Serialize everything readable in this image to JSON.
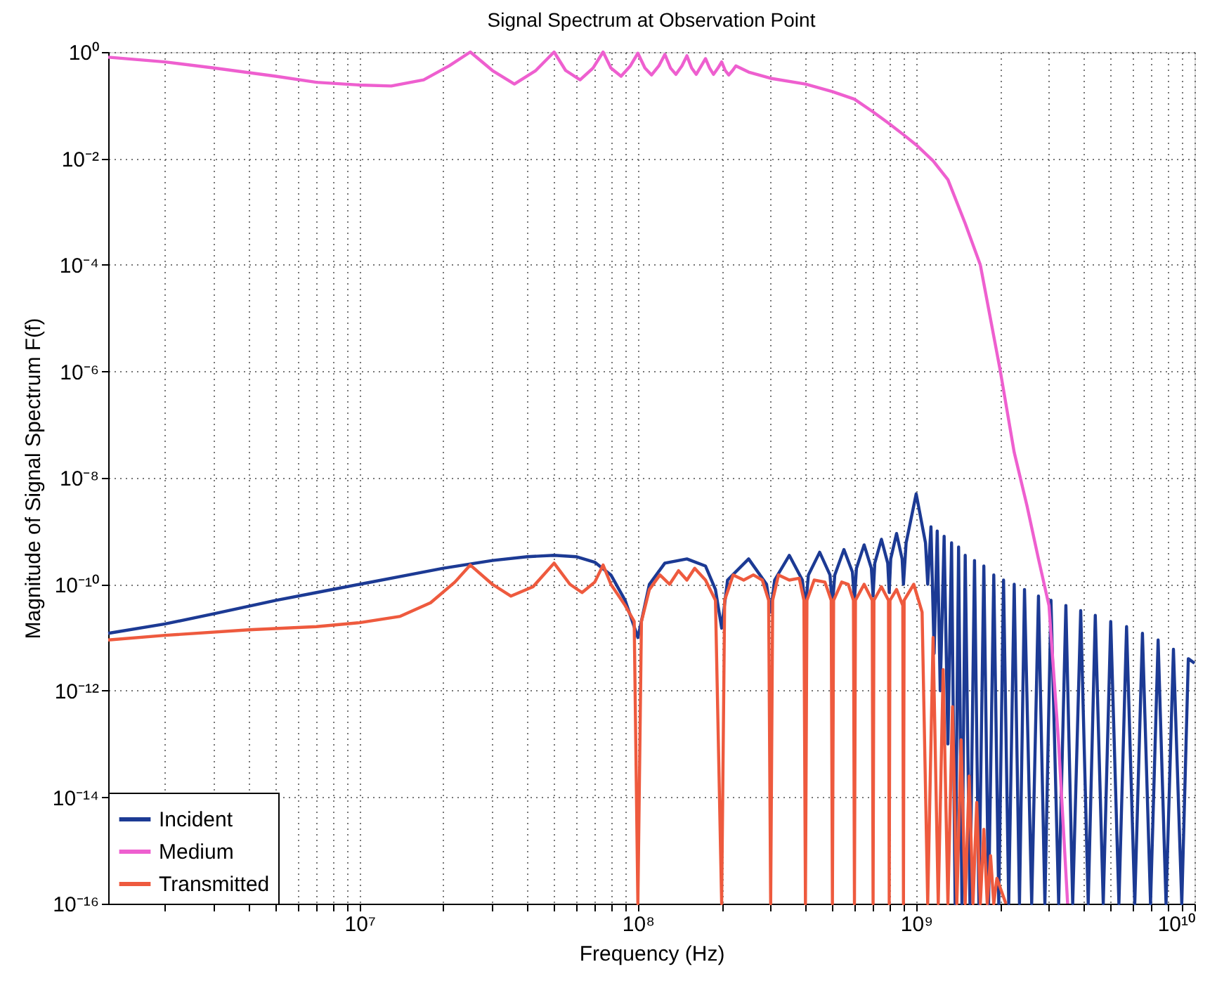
{
  "chart_data": {
    "type": "line",
    "title": "Signal Spectrum at Observation Point",
    "xlabel": "Frequency (Hz)",
    "ylabel": "Magnitude of Signal Spectrum F(f)",
    "log": "xy",
    "grid": true,
    "legend": "bottom left",
    "line_style": "solid",
    "xlim": [
      1250000,
      10000000000
    ],
    "ylim": [
      1e-16,
      1
    ],
    "xticks": [
      {
        "value": 2000000,
        "label": null
      },
      {
        "value": 3000000,
        "label": null
      },
      {
        "value": 4000000,
        "label": null
      },
      {
        "value": 5000000,
        "label": null
      },
      {
        "value": 6000000,
        "label": null
      },
      {
        "value": 7000000,
        "label": null
      },
      {
        "value": 8000000,
        "label": null
      },
      {
        "value": 9000000,
        "label": null
      },
      {
        "value": 10000000,
        "label": "10⁷"
      },
      {
        "value": 20000000,
        "label": null
      },
      {
        "value": 30000000,
        "label": null
      },
      {
        "value": 40000000,
        "label": null
      },
      {
        "value": 50000000,
        "label": null
      },
      {
        "value": 60000000,
        "label": null
      },
      {
        "value": 70000000,
        "label": null
      },
      {
        "value": 80000000,
        "label": null
      },
      {
        "value": 90000000,
        "label": null
      },
      {
        "value": 100000000,
        "label": "10⁸"
      },
      {
        "value": 200000000,
        "label": null
      },
      {
        "value": 300000000,
        "label": null
      },
      {
        "value": 400000000,
        "label": null
      },
      {
        "value": 500000000,
        "label": null
      },
      {
        "value": 600000000,
        "label": null
      },
      {
        "value": 700000000,
        "label": null
      },
      {
        "value": 800000000,
        "label": null
      },
      {
        "value": 900000000,
        "label": null
      },
      {
        "value": 1000000000,
        "label": "10⁹"
      },
      {
        "value": 2000000000,
        "label": null
      },
      {
        "value": 3000000000,
        "label": null
      },
      {
        "value": 4000000000,
        "label": null
      },
      {
        "value": 5000000000,
        "label": null
      },
      {
        "value": 6000000000,
        "label": null
      },
      {
        "value": 7000000000,
        "label": null
      },
      {
        "value": 8000000000,
        "label": null
      },
      {
        "value": 9000000000,
        "label": null
      },
      {
        "value": 10000000000,
        "label": "10¹⁰"
      }
    ],
    "yticks": [
      {
        "value": 1e-16,
        "label": "10⁻¹⁶"
      },
      {
        "value": 1e-14,
        "label": "10⁻¹⁴"
      },
      {
        "value": 1e-12,
        "label": "10⁻¹²"
      },
      {
        "value": 1e-10,
        "label": "10⁻¹⁰"
      },
      {
        "value": 1e-08,
        "label": "10⁻⁸"
      },
      {
        "value": 1e-06,
        "label": "10⁻⁶"
      },
      {
        "value": 0.0001,
        "label": "10⁻⁴"
      },
      {
        "value": 0.01,
        "label": "10⁻²"
      },
      {
        "value": 1,
        "label": "10⁰"
      }
    ],
    "series": [
      {
        "name": "Incident",
        "color": "#1c3a94",
        "x": [
          1250000,
          2000000,
          3000000,
          5000000,
          7000000,
          10000000,
          15000000,
          20000000,
          30000000,
          40000000,
          50000000,
          60000000,
          70000000,
          80000000,
          90000000,
          100000000,
          110000000,
          125000000,
          150000000,
          175000000,
          190000000,
          200000000,
          210000000,
          250000000,
          290000000,
          300000000,
          310000000,
          350000000,
          390000000,
          400000000,
          410000000,
          450000000,
          490000000,
          500000000,
          510000000,
          550000000,
          590000000,
          600000000,
          610000000,
          650000000,
          690000000,
          700000000,
          710000000,
          750000000,
          790000000,
          800000000,
          810000000,
          850000000,
          890000000,
          900000000,
          920000000,
          1000000000,
          1080000000,
          1100000000,
          1130000000,
          1160000000,
          1190000000,
          1220000000,
          1260000000,
          1300000000,
          1340000000,
          1380000000,
          1420000000,
          1460000000,
          1500000000,
          1560000000,
          1620000000,
          1680000000,
          1750000000,
          1820000000,
          1900000000,
          1980000000,
          2060000000,
          2150000000,
          2250000000,
          2350000000,
          2450000000,
          2600000000,
          2750000000,
          2900000000,
          3050000000,
          3250000000,
          3450000000,
          3650000000,
          3900000000,
          4150000000,
          4400000000,
          4700000000,
          5000000000,
          5350000000,
          5700000000,
          6100000000,
          6500000000,
          6950000000,
          7400000000,
          7900000000,
          8400000000,
          9000000000,
          9500000000,
          10000000000
        ],
        "values": [
          1.2e-11,
          1.8e-11,
          2.8e-11,
          5e-11,
          7e-11,
          1e-10,
          1.5e-10,
          2e-10,
          2.8e-10,
          3.3e-10,
          3.5e-10,
          3.3e-10,
          2.6e-10,
          1.5e-10,
          5e-11,
          1e-11,
          1e-10,
          2.5e-10,
          3e-10,
          2.2e-10,
          8e-11,
          1.5e-11,
          1.2e-10,
          3e-10,
          1e-10,
          3e-11,
          1.2e-10,
          3.5e-10,
          1.2e-10,
          3.5e-11,
          1.5e-10,
          4e-10,
          1.5e-10,
          4e-11,
          1.5e-10,
          4.5e-10,
          1.7e-10,
          5e-11,
          2e-10,
          5.5e-10,
          2e-10,
          6e-11,
          2.5e-10,
          7e-10,
          2.5e-10,
          7e-11,
          3e-10,
          9e-10,
          3e-10,
          1e-10,
          6e-10,
          5e-09,
          6e-10,
          1e-10,
          1.2e-09,
          5e-12,
          1e-09,
          1e-12,
          8e-10,
          1e-13,
          6e-10,
          1e-16,
          5e-10,
          1e-16,
          3.5e-10,
          1e-16,
          2.8e-10,
          1e-16,
          2.2e-10,
          1e-16,
          1.5e-10,
          1e-16,
          1.2e-10,
          1e-16,
          1e-10,
          1e-16,
          8e-11,
          1e-16,
          6e-11,
          1e-16,
          5e-11,
          1e-16,
          4e-11,
          1e-16,
          3.2e-11,
          1e-16,
          2.6e-11,
          1e-16,
          2e-11,
          1e-16,
          1.6e-11,
          1e-16,
          1.2e-11,
          1e-16,
          9e-12,
          1e-16,
          6e-12,
          1e-16,
          4e-12,
          3.3e-12
        ]
      },
      {
        "name": "Medium",
        "color": "#ee5fcf",
        "x": [
          1250000,
          2000000,
          3000000,
          5000000,
          7000000,
          10000000,
          13000000,
          17000000,
          21000000,
          25000000,
          30000000,
          36000000,
          43000000,
          50000000,
          55000000,
          62000000,
          69000000,
          75000000,
          80000000,
          87000000,
          94000000,
          100000000,
          106000000,
          112000000,
          119000000,
          125000000,
          131000000,
          137000000,
          144000000,
          150000000,
          156000000,
          162000000,
          169000000,
          175000000,
          181000000,
          187000000,
          194000000,
          200000000,
          206000000,
          212000000,
          219000000,
          225000000,
          250000000,
          300000000,
          400000000,
          500000000,
          600000000,
          700000000,
          800000000,
          900000000,
          1000000000,
          1150000000,
          1300000000,
          1500000000,
          1700000000,
          2000000000,
          2250000000,
          2500000000,
          2750000000,
          3000000000,
          3250000000,
          3500000000
        ],
        "values": [
          0.8,
          0.65,
          0.5,
          0.35,
          0.27,
          0.24,
          0.23,
          0.3,
          0.55,
          1.0,
          0.45,
          0.25,
          0.45,
          1.0,
          0.45,
          0.3,
          0.5,
          1.0,
          0.5,
          0.35,
          0.55,
          0.95,
          0.5,
          0.37,
          0.55,
          0.9,
          0.5,
          0.38,
          0.55,
          0.85,
          0.5,
          0.38,
          0.55,
          0.75,
          0.5,
          0.38,
          0.5,
          0.65,
          0.45,
          0.37,
          0.45,
          0.55,
          0.42,
          0.32,
          0.25,
          0.18,
          0.13,
          0.075,
          0.045,
          0.028,
          0.018,
          0.009,
          0.004,
          0.0006,
          0.0001,
          1.1e-06,
          3e-08,
          3e-09,
          3e-10,
          4e-11,
          1e-13,
          1e-16
        ]
      },
      {
        "name": "Transmitted",
        "color": "#ee5a3e",
        "x": [
          1250000,
          2000000,
          4000000,
          7000000,
          10000000,
          14000000,
          18000000,
          22000000,
          25000000,
          30000000,
          35000000,
          42000000,
          50000000,
          57000000,
          63000000,
          70000000,
          75000000,
          80000000,
          90000000,
          97000000,
          100000000,
          103000000,
          110000000,
          120000000,
          130000000,
          140000000,
          150000000,
          160000000,
          175000000,
          190000000,
          200000000,
          205000000,
          220000000,
          240000000,
          260000000,
          280000000,
          295000000,
          300000000,
          305000000,
          320000000,
          350000000,
          380000000,
          395000000,
          400000000,
          405000000,
          430000000,
          470000000,
          495000000,
          500000000,
          505000000,
          540000000,
          570000000,
          595000000,
          600000000,
          605000000,
          650000000,
          695000000,
          700000000,
          705000000,
          750000000,
          795000000,
          800000000,
          805000000,
          850000000,
          895000000,
          900000000,
          905000000,
          980000000,
          1050000000,
          1100000000,
          1150000000,
          1200000000,
          1250000000,
          1300000000,
          1350000000,
          1400000000,
          1450000000,
          1500000000,
          1550000000,
          1600000000,
          1650000000,
          1700000000,
          1750000000,
          1800000000,
          1850000000,
          1900000000,
          1950000000,
          2100000000
        ],
        "values": [
          9e-12,
          1.1e-11,
          1.4e-11,
          1.6e-11,
          1.9e-11,
          2.5e-11,
          4.5e-11,
          1.1e-10,
          2.3e-10,
          1e-10,
          6e-11,
          9e-11,
          2.5e-10,
          1e-10,
          7e-11,
          1.1e-10,
          2.3e-10,
          1e-10,
          4e-11,
          2e-11,
          1e-16,
          2e-11,
          8e-11,
          1.5e-10,
          1e-10,
          1.8e-10,
          1.2e-10,
          2e-10,
          1.2e-10,
          5e-11,
          1e-16,
          5e-11,
          1.5e-10,
          1.2e-10,
          1.5e-10,
          1.2e-10,
          5e-11,
          1e-16,
          5e-11,
          1.5e-10,
          1.2e-10,
          1.3e-10,
          5e-11,
          1e-16,
          5e-11,
          1.2e-10,
          1.1e-10,
          5e-11,
          1e-16,
          5e-11,
          1.1e-10,
          1e-10,
          5e-11,
          1e-16,
          5e-11,
          1e-10,
          5e-11,
          1e-16,
          5e-11,
          9e-11,
          5e-11,
          1e-16,
          5e-11,
          8e-11,
          4e-11,
          1e-16,
          5e-11,
          1e-10,
          3e-11,
          1e-16,
          1e-11,
          1e-16,
          2.5e-12,
          1e-16,
          5e-13,
          1e-16,
          1.2e-13,
          1e-16,
          2.5e-14,
          1e-16,
          8e-15,
          1e-16,
          2.5e-15,
          1e-16,
          8e-16,
          1e-16,
          3e-16,
          1e-16
        ]
      }
    ]
  }
}
